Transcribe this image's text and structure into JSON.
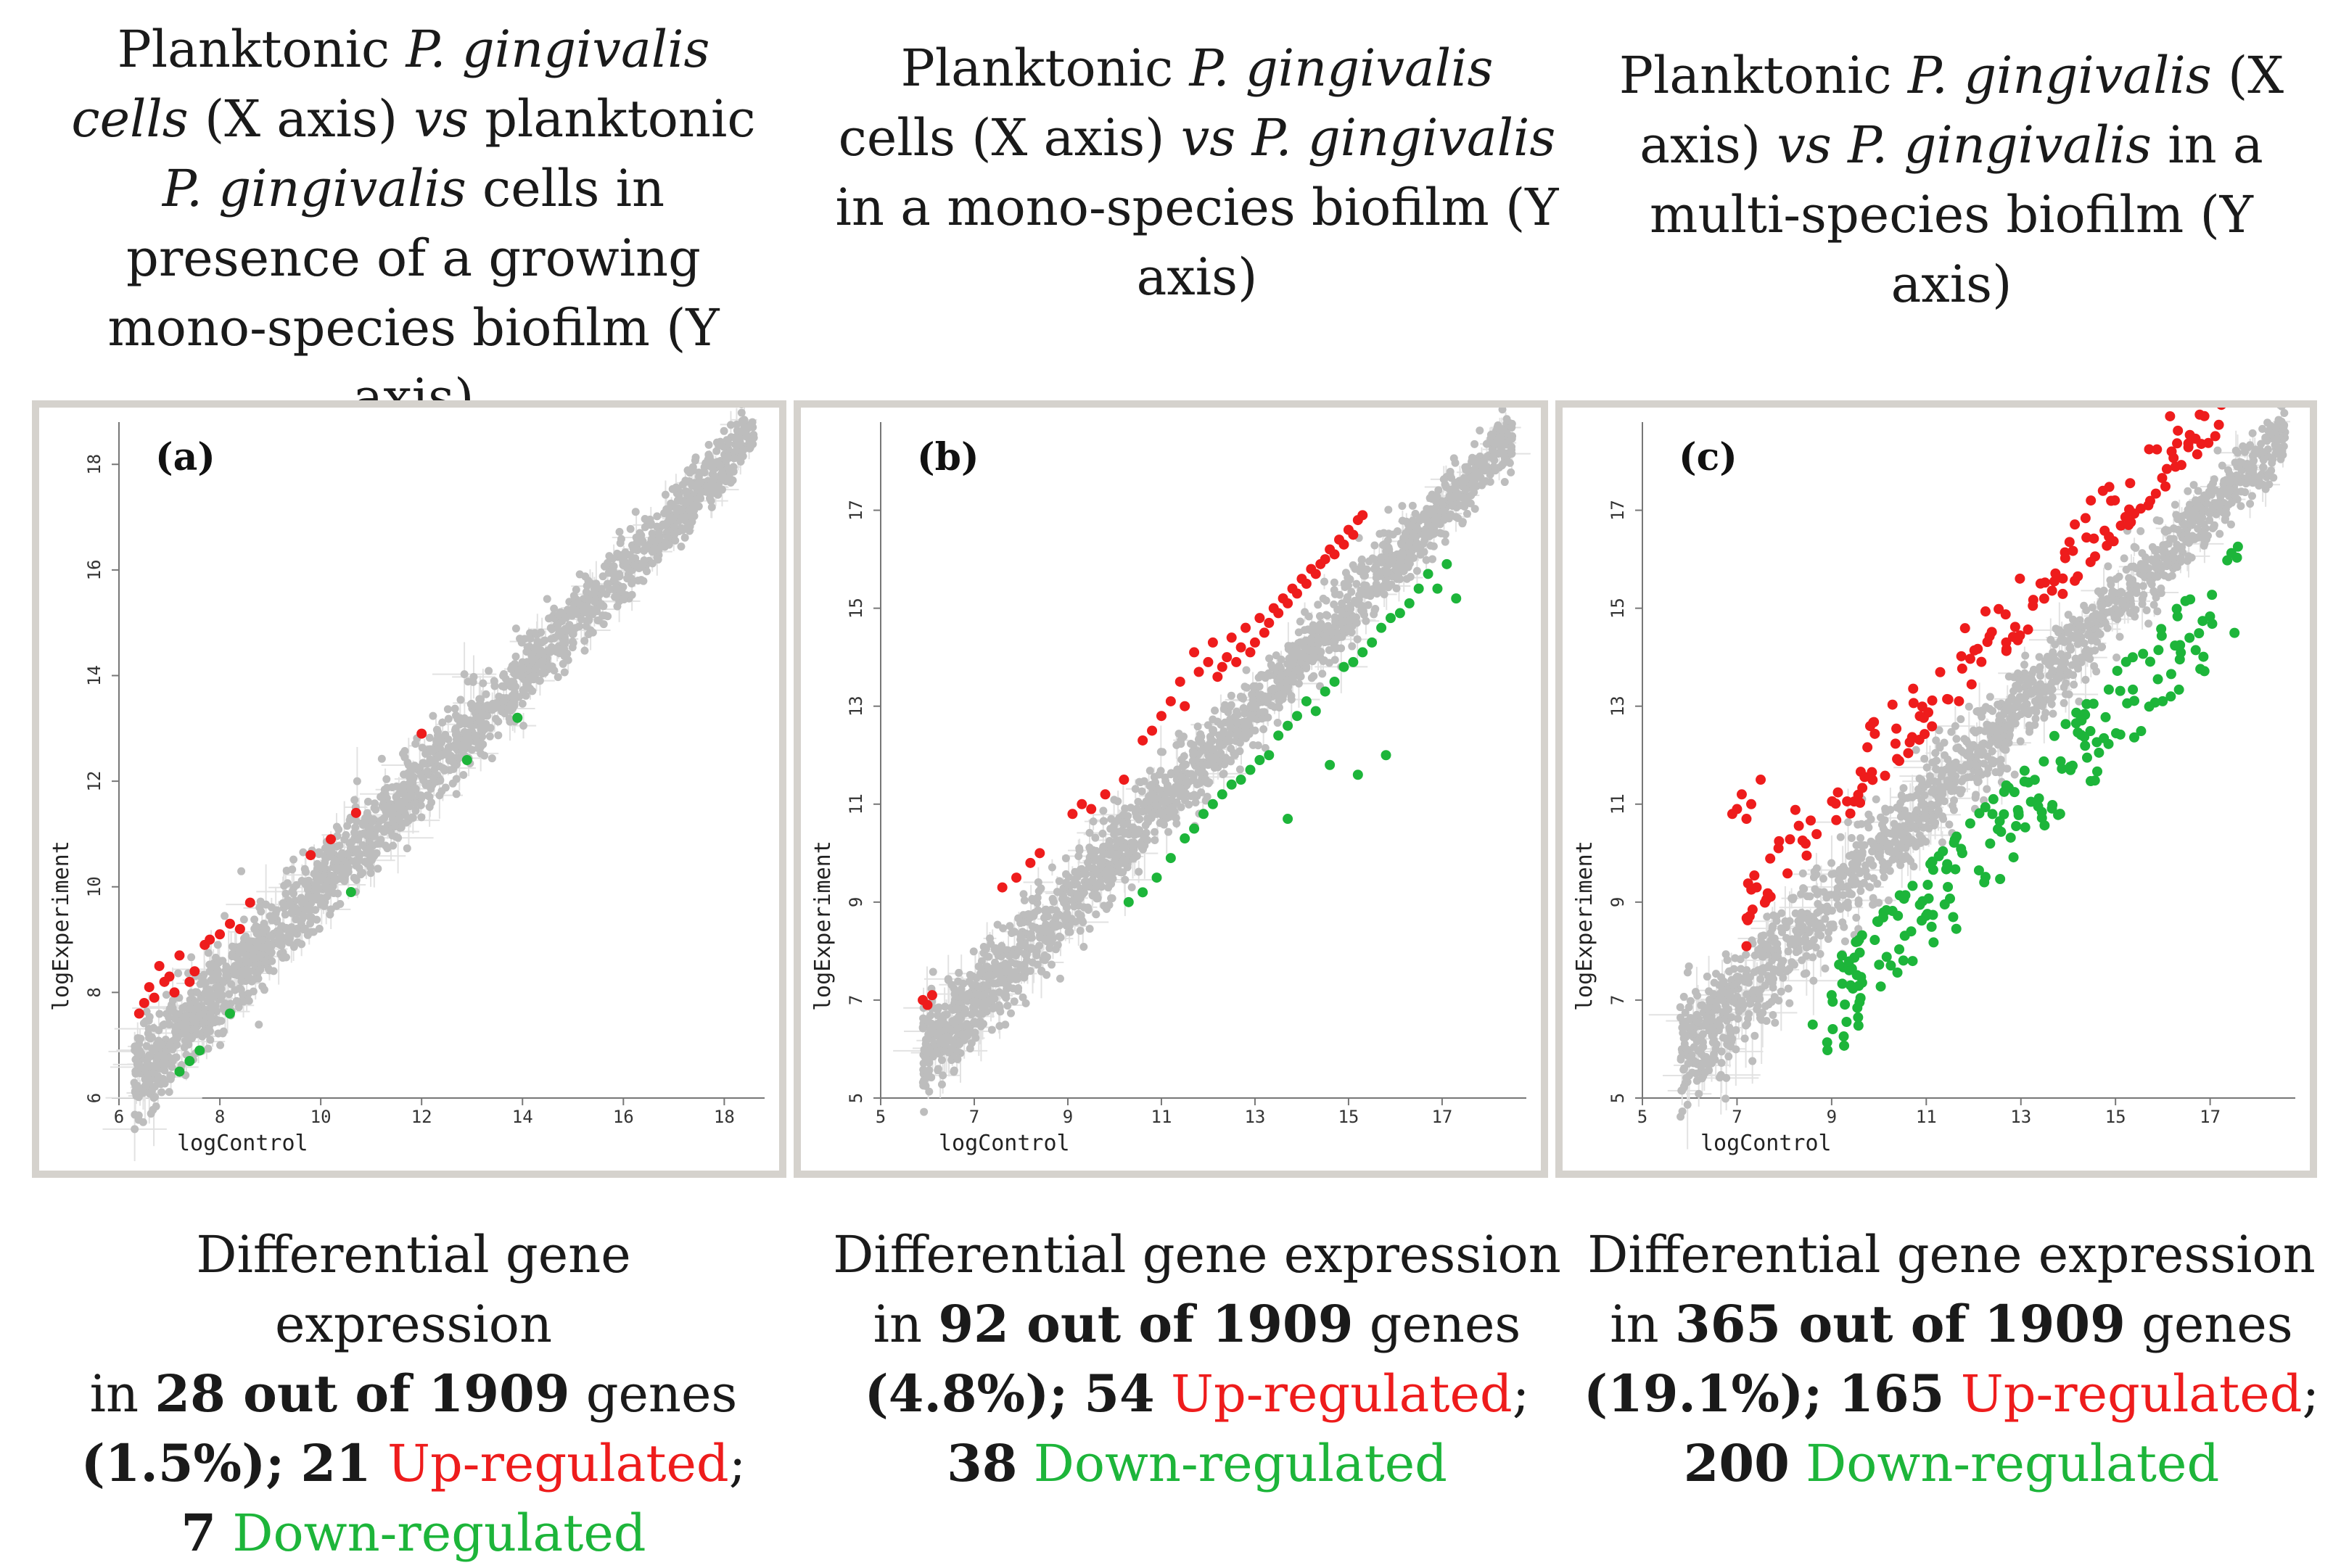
{
  "panels": [
    {
      "caption_parts": [
        {
          "t": "Planktonic ",
          "i": false
        },
        {
          "t": "P. gingivalis cells",
          "i": true
        },
        {
          "t": " (X axis) ",
          "i": false
        },
        {
          "t": "vs",
          "i": true
        },
        {
          "t": " planktonic ",
          "i": false
        },
        {
          "t": "P. gingivalis",
          "i": true
        },
        {
          "t": " cells in presence of a growing mono-species biofilm (Y axis)",
          "i": false
        }
      ],
      "summary": {
        "line1": "Differential gene expression",
        "in": "in ",
        "count": "28 out of 1909",
        "genes": " genes",
        "pct": "(1.5%);",
        "up_n": "21",
        "up_label": "Up-regulated",
        "semi": ";",
        "down_n": "7",
        "down_label": "Down-regulated"
      }
    },
    {
      "caption_parts": [
        {
          "t": "Planktonic ",
          "i": false
        },
        {
          "t": "P. gingivalis",
          "i": true
        },
        {
          "t": " cells (X axis) ",
          "i": false
        },
        {
          "t": "vs",
          "i": true
        },
        {
          "t": " ",
          "i": false
        },
        {
          "t": "P. gingivalis",
          "i": true
        },
        {
          "t": " in a mono-species biofilm (Y axis)",
          "i": false
        }
      ],
      "summary": {
        "line1": "Differential gene expression",
        "in": "in ",
        "count": "92 out of 1909",
        "genes": " genes",
        "pct": "(4.8%);",
        "up_n": "54",
        "up_label": "Up-regulated",
        "semi": ";",
        "down_n": "38",
        "down_label": "Down-regulated"
      }
    },
    {
      "caption_parts": [
        {
          "t": "Planktonic ",
          "i": false
        },
        {
          "t": "P. gingivalis",
          "i": true
        },
        {
          "t": " (X axis) ",
          "i": false
        },
        {
          "t": "vs",
          "i": true
        },
        {
          "t": " ",
          "i": false
        },
        {
          "t": "P. gingivalis",
          "i": true
        },
        {
          "t": " in a multi-species biofilm (Y axis)",
          "i": false
        }
      ],
      "summary": {
        "line1": "Differential gene expression",
        "in": "in ",
        "count": "365 out of 1909",
        "genes": " genes",
        "pct": "(19.1%);",
        "up_n": "165",
        "up_label": "Up-regulated",
        "semi": ";",
        "down_n": "200",
        "down_label": "Down-regulated"
      }
    }
  ],
  "colors": {
    "up": "#ee1c1c",
    "down": "#1db53a",
    "neutral": "#bdbdbd",
    "errorbar": "#e2e2e2"
  },
  "chart_data": [
    {
      "type": "scatter",
      "panel_label": "(a)",
      "xlabel": "logControl",
      "ylabel": "logExperiment",
      "xlim": [
        6,
        18.8
      ],
      "ylim": [
        6,
        18.8
      ],
      "xticks": [
        6,
        8,
        10,
        12,
        14,
        16,
        18
      ],
      "yticks": [
        6,
        8,
        10,
        12,
        14,
        16,
        18
      ],
      "n_total": 1909,
      "n_up": 21,
      "n_down": 7,
      "diag_range": [
        6.3,
        18.6
      ],
      "spread": 0.28,
      "up_points": [
        [
          6.4,
          7.6
        ],
        [
          6.5,
          7.8
        ],
        [
          6.6,
          8.1
        ],
        [
          6.7,
          7.9
        ],
        [
          6.8,
          8.5
        ],
        [
          6.9,
          8.2
        ],
        [
          7.0,
          8.3
        ],
        [
          7.1,
          8.0
        ],
        [
          7.2,
          8.7
        ],
        [
          7.4,
          8.2
        ],
        [
          7.5,
          8.4
        ],
        [
          7.7,
          8.9
        ],
        [
          7.8,
          9.0
        ],
        [
          8.0,
          9.1
        ],
        [
          8.2,
          9.3
        ],
        [
          8.4,
          9.2
        ],
        [
          8.6,
          9.7
        ],
        [
          9.8,
          10.6
        ],
        [
          10.2,
          10.9
        ],
        [
          10.7,
          11.4
        ],
        [
          12.0,
          12.9
        ]
      ],
      "down_points": [
        [
          7.2,
          6.5
        ],
        [
          7.4,
          6.7
        ],
        [
          7.6,
          6.9
        ],
        [
          8.2,
          7.6
        ],
        [
          10.6,
          9.9
        ],
        [
          12.9,
          12.4
        ],
        [
          13.9,
          13.2
        ]
      ]
    },
    {
      "type": "scatter",
      "panel_label": "(b)",
      "xlabel": "logControl",
      "ylabel": "logExperiment",
      "xlim": [
        5,
        18.8
      ],
      "ylim": [
        5,
        18.8
      ],
      "xticks": [
        5,
        7,
        9,
        11,
        13,
        15,
        17
      ],
      "yticks": [
        5,
        7,
        9,
        11,
        13,
        15,
        17
      ],
      "n_total": 1909,
      "n_up": 54,
      "n_down": 38,
      "diag_range": [
        5.9,
        18.5
      ],
      "spread": 0.3,
      "up_points": [
        [
          5.9,
          7.0
        ],
        [
          6.0,
          6.9
        ],
        [
          6.1,
          7.1
        ],
        [
          7.6,
          9.3
        ],
        [
          7.9,
          9.5
        ],
        [
          8.2,
          9.8
        ],
        [
          8.4,
          10.0
        ],
        [
          9.1,
          10.8
        ],
        [
          9.3,
          11.0
        ],
        [
          9.5,
          10.9
        ],
        [
          9.8,
          11.2
        ],
        [
          10.2,
          11.5
        ],
        [
          10.6,
          12.3
        ],
        [
          10.8,
          12.5
        ],
        [
          11.0,
          12.8
        ],
        [
          11.2,
          13.1
        ],
        [
          11.4,
          13.5
        ],
        [
          11.5,
          13.0
        ],
        [
          11.7,
          14.1
        ],
        [
          11.8,
          13.7
        ],
        [
          12.0,
          13.9
        ],
        [
          12.1,
          14.3
        ],
        [
          12.2,
          13.6
        ],
        [
          12.3,
          13.8
        ],
        [
          12.4,
          14.0
        ],
        [
          12.5,
          14.4
        ],
        [
          12.6,
          13.9
        ],
        [
          12.7,
          14.2
        ],
        [
          12.8,
          14.6
        ],
        [
          12.9,
          14.1
        ],
        [
          13.0,
          14.3
        ],
        [
          13.1,
          14.8
        ],
        [
          13.2,
          14.5
        ],
        [
          13.3,
          14.7
        ],
        [
          13.4,
          15.0
        ],
        [
          13.5,
          14.9
        ],
        [
          13.6,
          15.2
        ],
        [
          13.7,
          15.1
        ],
        [
          13.8,
          15.4
        ],
        [
          13.9,
          15.3
        ],
        [
          14.0,
          15.6
        ],
        [
          14.1,
          15.5
        ],
        [
          14.2,
          15.8
        ],
        [
          14.3,
          15.7
        ],
        [
          14.4,
          15.9
        ],
        [
          14.5,
          16.0
        ],
        [
          14.6,
          16.2
        ],
        [
          14.7,
          16.1
        ],
        [
          14.8,
          16.4
        ],
        [
          14.9,
          16.3
        ],
        [
          15.0,
          16.6
        ],
        [
          15.1,
          16.5
        ],
        [
          15.2,
          16.8
        ],
        [
          15.3,
          16.9
        ]
      ],
      "down_points": [
        [
          10.3,
          9.0
        ],
        [
          10.6,
          9.2
        ],
        [
          10.9,
          9.5
        ],
        [
          11.2,
          9.9
        ],
        [
          11.5,
          10.3
        ],
        [
          11.7,
          10.5
        ],
        [
          11.9,
          10.8
        ],
        [
          12.1,
          11.0
        ],
        [
          12.3,
          11.2
        ],
        [
          12.5,
          11.4
        ],
        [
          12.7,
          11.5
        ],
        [
          12.9,
          11.7
        ],
        [
          13.1,
          11.9
        ],
        [
          13.3,
          12.0
        ],
        [
          13.5,
          12.4
        ],
        [
          13.7,
          12.6
        ],
        [
          13.9,
          12.8
        ],
        [
          14.1,
          13.1
        ],
        [
          14.3,
          12.9
        ],
        [
          14.5,
          13.3
        ],
        [
          14.7,
          13.5
        ],
        [
          14.9,
          13.8
        ],
        [
          15.1,
          13.9
        ],
        [
          15.3,
          14.1
        ],
        [
          15.5,
          14.3
        ],
        [
          15.7,
          14.6
        ],
        [
          15.9,
          14.8
        ],
        [
          16.1,
          14.9
        ],
        [
          16.3,
          15.1
        ],
        [
          16.5,
          15.4
        ],
        [
          16.7,
          15.7
        ],
        [
          16.9,
          15.4
        ],
        [
          17.1,
          15.9
        ],
        [
          17.3,
          15.2
        ],
        [
          14.6,
          11.8
        ],
        [
          15.2,
          11.6
        ],
        [
          15.8,
          12.0
        ],
        [
          13.7,
          10.7
        ]
      ]
    },
    {
      "type": "scatter",
      "panel_label": "(c)",
      "xlabel": "logControl",
      "ylabel": "logExperiment",
      "xlim": [
        5,
        18.8
      ],
      "ylim": [
        5,
        18.8
      ],
      "xticks": [
        5,
        7,
        9,
        11,
        13,
        15,
        17
      ],
      "yticks": [
        5,
        7,
        9,
        11,
        13,
        15,
        17
      ],
      "n_total": 1909,
      "n_up": 165,
      "n_down": 200,
      "diag_range": [
        5.8,
        18.6
      ],
      "spread": 0.35,
      "up_band": {
        "x": [
          7.0,
          17.3
        ],
        "offset": [
          1.4,
          2.8
        ],
        "seed": 11
      },
      "down_band": {
        "x": [
          8.9,
          17.6
        ],
        "offset": [
          -1.3,
          -3.2
        ],
        "seed": 23
      },
      "up_extra": [
        [
          6.9,
          10.8
        ],
        [
          7.0,
          10.9
        ],
        [
          7.1,
          11.2
        ],
        [
          7.2,
          10.7
        ],
        [
          7.3,
          11.0
        ],
        [
          7.5,
          11.5
        ],
        [
          7.2,
          8.1
        ]
      ],
      "down_extra": [
        [
          8.6,
          6.5
        ],
        [
          9.0,
          7.1
        ],
        [
          9.4,
          7.3
        ]
      ]
    }
  ]
}
